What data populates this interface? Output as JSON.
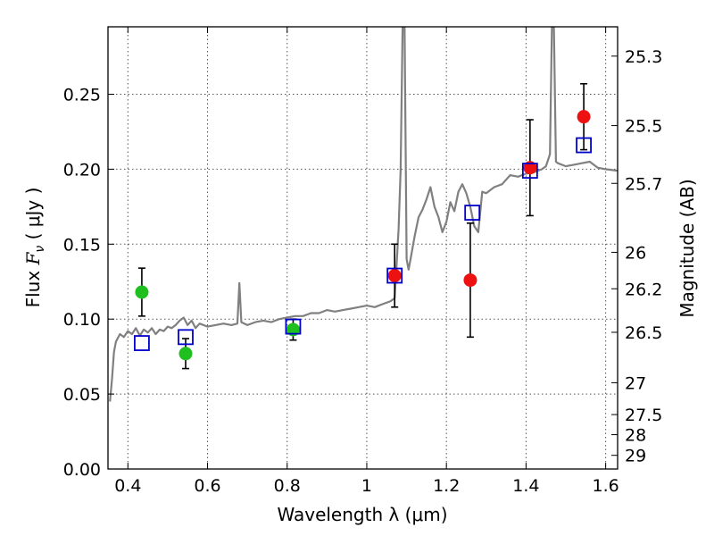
{
  "chart_data": {
    "type": "scatter",
    "xlabel": "Wavelength  λ (μm)",
    "ylabel": "Flux  F_ν  ( μJy )",
    "ylabel_parts": {
      "prefix": "Flux ",
      "symbol": "F",
      "subscript": "ν",
      "suffix": "  ( μJy )"
    },
    "y2label": "Magnitude (AB)",
    "xlim": [
      0.35,
      1.63
    ],
    "ylim": [
      0.0,
      0.295
    ],
    "x_ticks": [
      0.4,
      0.6,
      0.8,
      1.0,
      1.2,
      1.4,
      1.6
    ],
    "x_tick_labels": [
      "0.4",
      "0.6",
      "0.8",
      "1",
      "1.2",
      "1.4",
      "1.6"
    ],
    "y_ticks": [
      0.0,
      0.05,
      0.1,
      0.15,
      0.2,
      0.25
    ],
    "y_tick_labels": [
      "0.00",
      "0.05",
      "0.10",
      "0.15",
      "0.20",
      "0.25"
    ],
    "y2_ticks": [
      25.3,
      25.5,
      25.7,
      26,
      26.2,
      26.5,
      27,
      27.5,
      28,
      29
    ],
    "y2_tick_labels": [
      "25.3",
      "25.5",
      "25.7",
      "26",
      "26.2",
      "26.5",
      "27",
      "27.5",
      "28",
      "29"
    ],
    "grid": true,
    "colors": {
      "model": "#808080",
      "green_points": "#1fbf1f",
      "red_points": "#ee1111",
      "model_photometry": "#0000cc",
      "error_bars": "#000000"
    },
    "series": [
      {
        "kind": "line",
        "color": "#808080",
        "x": [
          0.355,
          0.36,
          0.365,
          0.37,
          0.38,
          0.39,
          0.4,
          0.41,
          0.42,
          0.43,
          0.44,
          0.45,
          0.46,
          0.47,
          0.48,
          0.49,
          0.5,
          0.51,
          0.52,
          0.53,
          0.54,
          0.55,
          0.56,
          0.57,
          0.58,
          0.6,
          0.62,
          0.64,
          0.66,
          0.675,
          0.68,
          0.685,
          0.7,
          0.72,
          0.74,
          0.76,
          0.78,
          0.8,
          0.82,
          0.84,
          0.86,
          0.88,
          0.9,
          0.92,
          0.94,
          0.96,
          0.98,
          1.0,
          1.02,
          1.04,
          1.06,
          1.07,
          1.08,
          1.085,
          1.09,
          1.095,
          1.1,
          1.105,
          1.11,
          1.12,
          1.13,
          1.14,
          1.15,
          1.16,
          1.17,
          1.18,
          1.19,
          1.2,
          1.21,
          1.22,
          1.23,
          1.24,
          1.25,
          1.26,
          1.27,
          1.28,
          1.29,
          1.3,
          1.32,
          1.34,
          1.36,
          1.38,
          1.4,
          1.42,
          1.44,
          1.45,
          1.46,
          1.465,
          1.47,
          1.475,
          1.48,
          1.5,
          1.52,
          1.54,
          1.56,
          1.58,
          1.6,
          1.63
        ],
        "y": [
          0.045,
          0.06,
          0.078,
          0.085,
          0.09,
          0.088,
          0.092,
          0.09,
          0.094,
          0.089,
          0.093,
          0.091,
          0.094,
          0.09,
          0.093,
          0.092,
          0.095,
          0.094,
          0.096,
          0.099,
          0.101,
          0.096,
          0.099,
          0.094,
          0.097,
          0.095,
          0.096,
          0.097,
          0.096,
          0.097,
          0.124,
          0.098,
          0.096,
          0.098,
          0.099,
          0.098,
          0.1,
          0.101,
          0.102,
          0.102,
          0.104,
          0.104,
          0.106,
          0.105,
          0.106,
          0.107,
          0.108,
          0.109,
          0.108,
          0.11,
          0.112,
          0.114,
          0.16,
          0.2,
          0.295,
          0.295,
          0.14,
          0.133,
          0.14,
          0.155,
          0.168,
          0.173,
          0.18,
          0.188,
          0.175,
          0.168,
          0.158,
          0.165,
          0.178,
          0.172,
          0.185,
          0.19,
          0.184,
          0.175,
          0.162,
          0.158,
          0.185,
          0.184,
          0.188,
          0.19,
          0.196,
          0.195,
          0.197,
          0.198,
          0.2,
          0.202,
          0.21,
          0.295,
          0.295,
          0.205,
          0.204,
          0.202,
          0.203,
          0.204,
          0.205,
          0.201,
          0.2,
          0.199
        ]
      },
      {
        "kind": "points",
        "color": "#1fbf1f",
        "x": [
          0.435,
          0.545,
          0.815
        ],
        "y": [
          0.118,
          0.077,
          0.093
        ],
        "yerr": [
          0.016,
          0.01,
          0.007
        ]
      },
      {
        "kind": "points",
        "color": "#ee1111",
        "x": [
          1.07,
          1.26,
          1.41,
          1.545
        ],
        "y": [
          0.129,
          0.126,
          0.201,
          0.235
        ],
        "yerr": [
          0.021,
          0.038,
          0.032,
          0.022
        ]
      },
      {
        "kind": "open-squares",
        "color": "#0000cc",
        "x": [
          0.435,
          0.545,
          0.815,
          1.07,
          1.265,
          1.41,
          1.545
        ],
        "y": [
          0.084,
          0.088,
          0.095,
          0.129,
          0.171,
          0.199,
          0.216
        ]
      }
    ]
  }
}
